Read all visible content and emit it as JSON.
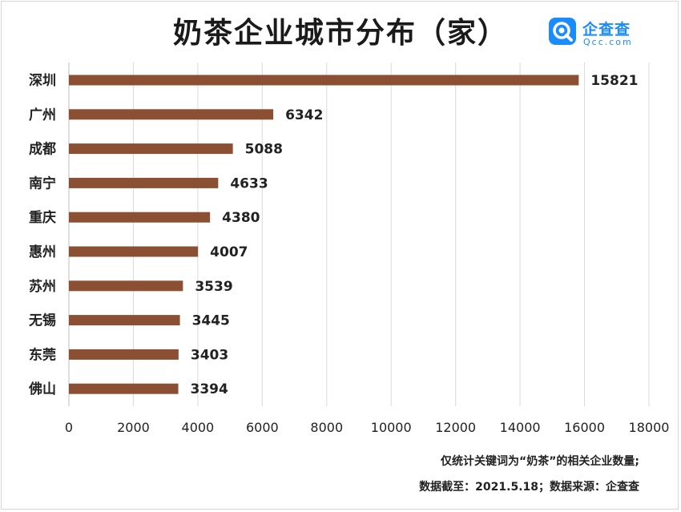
{
  "title": "奶茶企业城市分布（家）",
  "logo": {
    "name": "企查查",
    "sub": "Qcc.com",
    "color": "#1a8cff"
  },
  "footer": {
    "note": "仅统计关键词为“奶茶”的相关企业数量;",
    "source": "数据截至：2021.5.18；数据来源：企查查"
  },
  "chart_data": {
    "type": "bar",
    "orientation": "horizontal",
    "categories": [
      "深圳",
      "广州",
      "成都",
      "南宁",
      "重庆",
      "惠州",
      "苏州",
      "无锡",
      "东莞",
      "佛山"
    ],
    "values": [
      15821,
      6342,
      5088,
      4633,
      4380,
      4007,
      3539,
      3445,
      3403,
      3394
    ],
    "xlim": [
      0,
      18000
    ],
    "xticks": [
      0,
      2000,
      4000,
      6000,
      8000,
      10000,
      12000,
      14000,
      16000,
      18000
    ],
    "bar_color": "#8b4f33",
    "grid": true,
    "data_labels": true
  }
}
